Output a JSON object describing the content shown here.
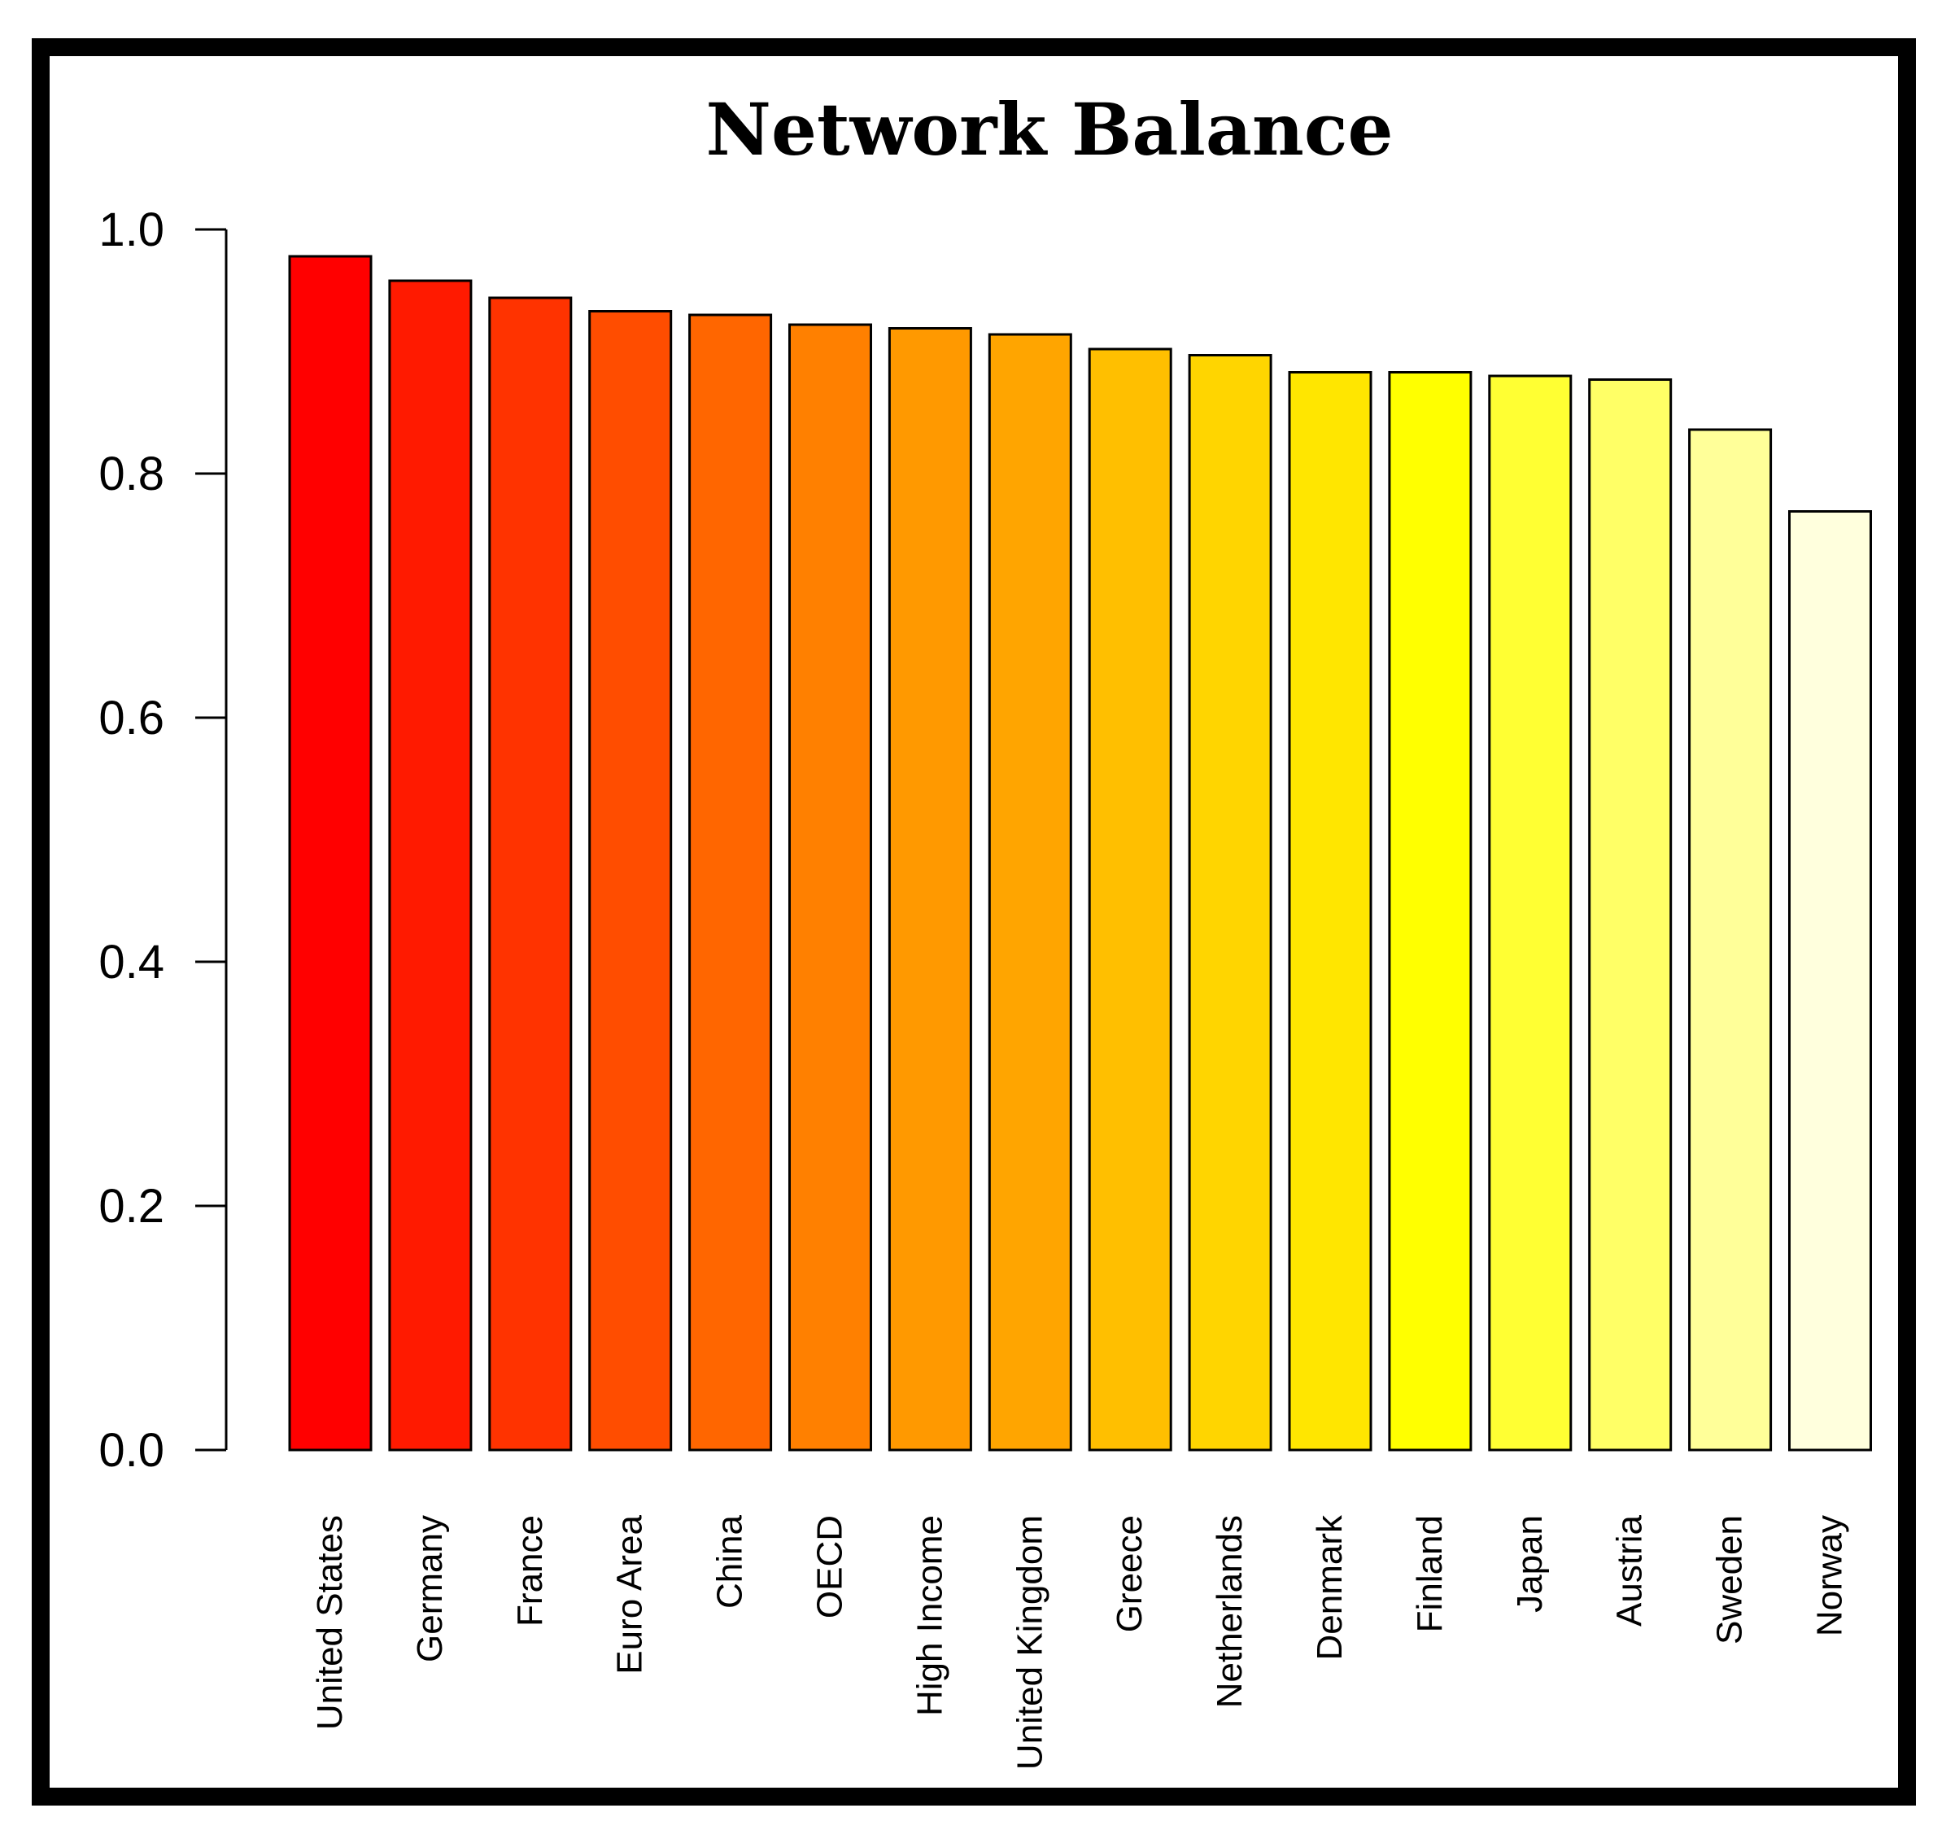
{
  "chart_data": {
    "type": "bar",
    "title": "Network Balance",
    "xlabel": "",
    "ylabel": "",
    "ylim": [
      0,
      1.0
    ],
    "yticks": [
      "0.0",
      "0.2",
      "0.4",
      "0.6",
      "0.8",
      "1.0"
    ],
    "grid": false,
    "legend": "none",
    "categories": [
      "United States",
      "Germany",
      "France",
      "Euro Area",
      "China",
      "OECD",
      "High Income",
      "United Kingdom",
      "Greece",
      "Netherlands",
      "Denmark",
      "Finland",
      "Japan",
      "Austria",
      "Sweden",
      "Norway"
    ],
    "values": [
      0.978,
      0.958,
      0.944,
      0.933,
      0.93,
      0.922,
      0.919,
      0.914,
      0.902,
      0.897,
      0.883,
      0.883,
      0.88,
      0.877,
      0.836,
      0.769
    ],
    "colors": [
      "#ff0000",
      "#ff1a00",
      "#ff3300",
      "#ff4d00",
      "#ff6600",
      "#ff8000",
      "#ff9900",
      "#ffa500",
      "#ffbf00",
      "#ffd500",
      "#ffe600",
      "#ffff00",
      "#ffff33",
      "#ffff66",
      "#ffff99",
      "#ffffdd"
    ]
  }
}
